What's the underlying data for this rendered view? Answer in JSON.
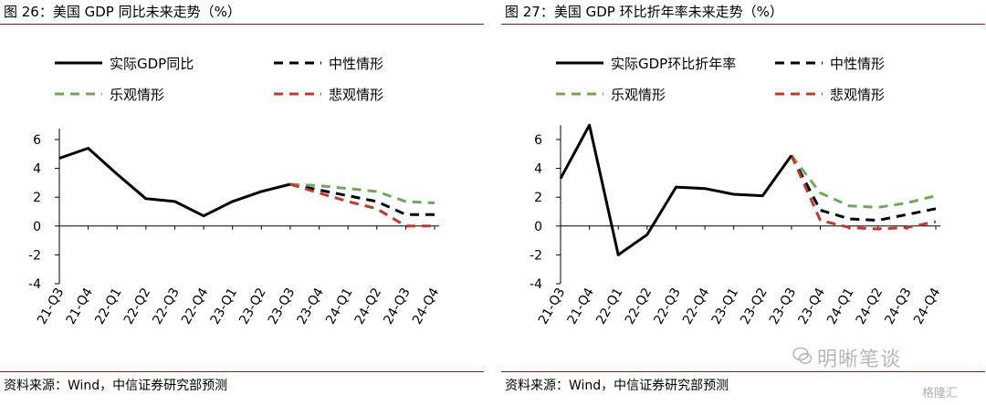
{
  "charts": [
    {
      "title": "图 26：美国 GDP 同比未来走势（%）",
      "source": "资料来源：Wind，中信证券研究部预测"
    },
    {
      "title": "图 27：美国 GDP 环比折年率未来走势（%）",
      "source": "资料来源：Wind，中信证券研究部预测"
    }
  ],
  "watermark": {
    "text": "明晰笔谈",
    "brand": "格隆汇"
  },
  "chart_data": [
    {
      "type": "line",
      "title": "",
      "categories": [
        "21-Q3",
        "21-Q4",
        "22-Q1",
        "22-Q2",
        "22-Q3",
        "22-Q4",
        "23-Q1",
        "23-Q2",
        "23-Q3",
        "23-Q4",
        "24-Q1",
        "24-Q2",
        "24-Q3",
        "24-Q4"
      ],
      "ylim": [
        -4,
        6
      ],
      "yticks": [
        6,
        4,
        2,
        0,
        -2,
        -4
      ],
      "grid": false,
      "legend_position": "top",
      "series": [
        {
          "name": "实际GDP同比",
          "style": "solid",
          "color": "#000000",
          "values": [
            4.7,
            5.4,
            3.6,
            1.9,
            1.7,
            0.7,
            1.7,
            2.4,
            2.9,
            null,
            null,
            null,
            null,
            null
          ]
        },
        {
          "name": "中性情形",
          "style": "dash",
          "color": "#000000",
          "values": [
            null,
            null,
            null,
            null,
            null,
            null,
            null,
            null,
            2.9,
            2.5,
            2.1,
            1.7,
            0.8,
            0.8
          ]
        },
        {
          "name": "乐观情形",
          "style": "dash",
          "color": "#70a85a",
          "values": [
            null,
            null,
            null,
            null,
            null,
            null,
            null,
            null,
            2.9,
            2.8,
            2.6,
            2.4,
            1.7,
            1.6
          ]
        },
        {
          "name": "悲观情形",
          "style": "dash",
          "color": "#c0392b",
          "values": [
            null,
            null,
            null,
            null,
            null,
            null,
            null,
            null,
            2.9,
            2.3,
            1.7,
            1.2,
            0.0,
            0.0
          ]
        }
      ]
    },
    {
      "type": "line",
      "title": "",
      "categories": [
        "21-Q3",
        "21-Q4",
        "22-Q1",
        "22-Q2",
        "22-Q3",
        "22-Q4",
        "23-Q1",
        "23-Q2",
        "23-Q3",
        "23-Q4",
        "24-Q1",
        "24-Q2",
        "24-Q3",
        "24-Q4"
      ],
      "ylim": [
        -4,
        7
      ],
      "yticks": [
        6,
        4,
        2,
        0,
        -2,
        -4
      ],
      "grid": false,
      "legend_position": "top",
      "series": [
        {
          "name": "实际GDP环比折年率",
          "style": "solid",
          "color": "#000000",
          "values": [
            3.3,
            7.0,
            -2.0,
            -0.6,
            2.7,
            2.6,
            2.2,
            2.1,
            4.9,
            null,
            null,
            null,
            null,
            null
          ]
        },
        {
          "name": "中性情形",
          "style": "dash",
          "color": "#000000",
          "values": [
            null,
            null,
            null,
            null,
            null,
            null,
            null,
            null,
            4.9,
            1.1,
            0.5,
            0.4,
            0.8,
            1.2
          ]
        },
        {
          "name": "乐观情形",
          "style": "dash",
          "color": "#70a85a",
          "values": [
            null,
            null,
            null,
            null,
            null,
            null,
            null,
            null,
            4.9,
            2.3,
            1.4,
            1.3,
            1.6,
            2.1
          ]
        },
        {
          "name": "悲观情形",
          "style": "dash",
          "color": "#c0392b",
          "values": [
            null,
            null,
            null,
            null,
            null,
            null,
            null,
            null,
            4.9,
            0.4,
            -0.1,
            -0.2,
            -0.1,
            0.3
          ]
        }
      ]
    }
  ]
}
